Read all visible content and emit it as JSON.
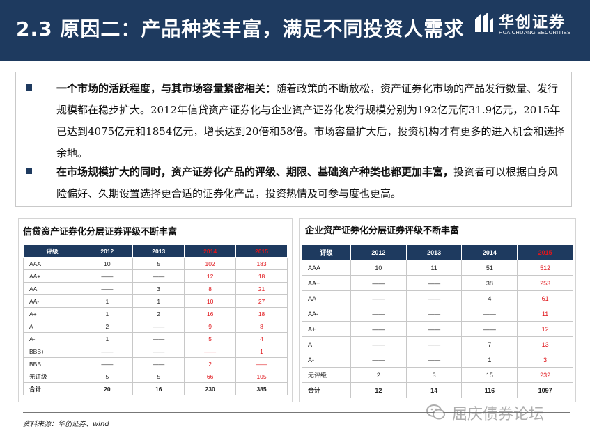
{
  "header": {
    "title": "2.3 原因二：产品种类丰富，满足不同投资人需求",
    "logo_cn": "华创证券",
    "logo_en": "HUA CHUANG SECURITIES"
  },
  "bullets": [
    {
      "lead": "一个市场的活跃程度，与其市场容量紧密相关：",
      "body": "随着政策的不断放松，资产证券化市场的产品发行数量、发行规模都在稳步扩大。2012年信贷资产证券化与企业资产证券化发行规模分别为192亿元何31.9亿元，2015年已达到4075亿元和1854亿元，增长达到20倍和58倍。市场容量扩大后，投资机构才有更多的进入机会和选择余地。"
    },
    {
      "lead": "在市场规模扩大的同时，资产证券化产品的评级、期限、基础资产种类也都更加丰富，",
      "body": "投资者可以根据自身风险偏好、久期设置选择更合适的证券化产品，投资热情及可参与度也更高。"
    }
  ],
  "table1": {
    "caption": "信贷资产证券化分层证券评级不断丰富",
    "headers": [
      "评级",
      "2012",
      "2013",
      "2014",
      "2015"
    ],
    "rows": [
      [
        "AAA",
        "10",
        "5",
        "102",
        "183"
      ],
      [
        "AA+",
        "——",
        "——",
        "12",
        "18"
      ],
      [
        "AA",
        "——",
        "3",
        "8",
        "21"
      ],
      [
        "AA-",
        "1",
        "1",
        "10",
        "27"
      ],
      [
        "A+",
        "1",
        "2",
        "16",
        "18"
      ],
      [
        "A",
        "2",
        "——",
        "9",
        "8"
      ],
      [
        "A-",
        "1",
        "——",
        "5",
        "4"
      ],
      [
        "BBB+",
        "——",
        "——",
        "——",
        "1"
      ],
      [
        "BBB",
        "——",
        "——",
        "2",
        "——"
      ],
      [
        "无评级",
        "5",
        "5",
        "66",
        "105"
      ],
      [
        "合计",
        "20",
        "16",
        "230",
        "385"
      ]
    ]
  },
  "table2": {
    "caption": "企业资产证券化分层证券评级不断丰富",
    "headers": [
      "评级",
      "2012",
      "2013",
      "2014",
      "2015"
    ],
    "rows": [
      [
        "AAA",
        "10",
        "11",
        "51",
        "512"
      ],
      [
        "AA+",
        "——",
        "——",
        "38",
        "253"
      ],
      [
        "AA",
        "——",
        "——",
        "4",
        "61"
      ],
      [
        "AA-",
        "——",
        "——",
        "——",
        "11"
      ],
      [
        "A+",
        "——",
        "——",
        "——",
        "12"
      ],
      [
        "A",
        "——",
        "——",
        "7",
        "13"
      ],
      [
        "A-",
        "——",
        "——",
        "1",
        "3"
      ],
      [
        "无评级",
        "2",
        "3",
        "15",
        "232"
      ],
      [
        "合计",
        "12",
        "14",
        "116",
        "1097"
      ]
    ]
  },
  "source": "资料来源：华创证券、wind",
  "watermark": "屈庆债券论坛",
  "colors": {
    "header_bg": "#1e3a5f",
    "highlight": "#e0161b"
  }
}
